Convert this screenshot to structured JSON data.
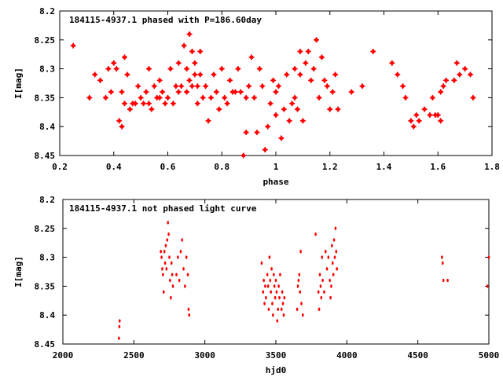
{
  "chart_data": [
    {
      "type": "scatter",
      "title": "184115-4937.1 phased with P=186.60day",
      "xlabel": "phase",
      "ylabel": "I[mag]",
      "xlim": [
        0.2,
        1.8
      ],
      "ylim": [
        8.2,
        8.45
      ],
      "y_inverted": true,
      "x_ticks": [
        "0.2",
        "0.4",
        "0.6",
        "0.8",
        "1",
        "1.2",
        "1.4",
        "1.6",
        "1.8"
      ],
      "y_ticks": [
        "8.2",
        "8.25",
        "8.3",
        "8.35",
        "8.4",
        "8.45"
      ],
      "marker_color": "#ff0000",
      "grid": false,
      "points": [
        [
          0.25,
          8.26
        ],
        [
          0.31,
          8.35
        ],
        [
          0.33,
          8.31
        ],
        [
          0.35,
          8.32
        ],
        [
          0.37,
          8.35
        ],
        [
          0.38,
          8.3
        ],
        [
          0.39,
          8.34
        ],
        [
          0.4,
          8.29
        ],
        [
          0.41,
          8.3
        ],
        [
          0.42,
          8.39
        ],
        [
          0.43,
          8.4
        ],
        [
          0.43,
          8.34
        ],
        [
          0.44,
          8.28
        ],
        [
          0.44,
          8.36
        ],
        [
          0.45,
          8.31
        ],
        [
          0.46,
          8.37
        ],
        [
          0.47,
          8.36
        ],
        [
          0.48,
          8.36
        ],
        [
          0.49,
          8.33
        ],
        [
          0.5,
          8.35
        ],
        [
          0.51,
          8.36
        ],
        [
          0.52,
          8.34
        ],
        [
          0.53,
          8.3
        ],
        [
          0.53,
          8.36
        ],
        [
          0.54,
          8.37
        ],
        [
          0.55,
          8.33
        ],
        [
          0.56,
          8.35
        ],
        [
          0.57,
          8.35
        ],
        [
          0.57,
          8.32
        ],
        [
          0.58,
          8.34
        ],
        [
          0.59,
          8.36
        ],
        [
          0.6,
          8.35
        ],
        [
          0.61,
          8.3
        ],
        [
          0.62,
          8.36
        ],
        [
          0.63,
          8.33
        ],
        [
          0.64,
          8.29
        ],
        [
          0.64,
          8.34
        ],
        [
          0.65,
          8.33
        ],
        [
          0.66,
          8.26
        ],
        [
          0.67,
          8.34
        ],
        [
          0.67,
          8.3
        ],
        [
          0.68,
          8.24
        ],
        [
          0.68,
          8.32
        ],
        [
          0.69,
          8.27
        ],
        [
          0.69,
          8.33
        ],
        [
          0.7,
          8.29
        ],
        [
          0.7,
          8.31
        ],
        [
          0.71,
          8.36
        ],
        [
          0.71,
          8.33
        ],
        [
          0.72,
          8.27
        ],
        [
          0.72,
          8.31
        ],
        [
          0.73,
          8.35
        ],
        [
          0.74,
          8.33
        ],
        [
          0.75,
          8.39
        ],
        [
          0.76,
          8.35
        ],
        [
          0.77,
          8.31
        ],
        [
          0.78,
          8.34
        ],
        [
          0.79,
          8.37
        ],
        [
          0.8,
          8.3
        ],
        [
          0.81,
          8.35
        ],
        [
          0.82,
          8.36
        ],
        [
          0.83,
          8.32
        ],
        [
          0.84,
          8.34
        ],
        [
          0.85,
          8.34
        ],
        [
          0.86,
          8.3
        ],
        [
          0.87,
          8.34
        ],
        [
          0.88,
          8.45
        ],
        [
          0.89,
          8.35
        ],
        [
          0.89,
          8.41
        ],
        [
          0.9,
          8.33
        ],
        [
          0.91,
          8.28
        ],
        [
          0.92,
          8.35
        ],
        [
          0.93,
          8.41
        ],
        [
          0.94,
          8.3
        ],
        [
          0.95,
          8.33
        ],
        [
          0.96,
          8.44
        ],
        [
          0.97,
          8.4
        ],
        [
          0.98,
          8.36
        ],
        [
          0.99,
          8.32
        ],
        [
          1.0,
          8.38
        ],
        [
          1.0,
          8.34
        ],
        [
          1.01,
          8.33
        ],
        [
          1.02,
          8.42
        ],
        [
          1.03,
          8.37
        ],
        [
          1.04,
          8.31
        ],
        [
          1.05,
          8.39
        ],
        [
          1.06,
          8.36
        ],
        [
          1.07,
          8.3
        ],
        [
          1.07,
          8.35
        ],
        [
          1.08,
          8.37
        ],
        [
          1.09,
          8.27
        ],
        [
          1.09,
          8.31
        ],
        [
          1.1,
          8.39
        ],
        [
          1.11,
          8.29
        ],
        [
          1.12,
          8.27
        ],
        [
          1.13,
          8.32
        ],
        [
          1.14,
          8.3
        ],
        [
          1.15,
          8.25
        ],
        [
          1.16,
          8.35
        ],
        [
          1.17,
          8.28
        ],
        [
          1.18,
          8.32
        ],
        [
          1.19,
          8.33
        ],
        [
          1.2,
          8.37
        ],
        [
          1.21,
          8.34
        ],
        [
          1.22,
          8.31
        ],
        [
          1.23,
          8.37
        ],
        [
          1.28,
          8.34
        ],
        [
          1.32,
          8.33
        ],
        [
          1.36,
          8.27
        ],
        [
          1.43,
          8.29
        ],
        [
          1.45,
          8.31
        ],
        [
          1.47,
          8.33
        ],
        [
          1.48,
          8.35
        ],
        [
          1.5,
          8.39
        ],
        [
          1.51,
          8.4
        ],
        [
          1.52,
          8.38
        ],
        [
          1.53,
          8.39
        ],
        [
          1.55,
          8.37
        ],
        [
          1.57,
          8.38
        ],
        [
          1.58,
          8.35
        ],
        [
          1.59,
          8.38
        ],
        [
          1.6,
          8.38
        ],
        [
          1.61,
          8.39
        ],
        [
          1.61,
          8.34
        ],
        [
          1.62,
          8.33
        ],
        [
          1.63,
          8.32
        ],
        [
          1.66,
          8.32
        ],
        [
          1.67,
          8.29
        ],
        [
          1.68,
          8.31
        ],
        [
          1.7,
          8.3
        ],
        [
          1.72,
          8.31
        ],
        [
          1.73,
          8.35
        ]
      ]
    },
    {
      "type": "scatter",
      "title": "184115-4937.1 not phased light curve",
      "xlabel": "hjd0",
      "ylabel": "I[mag]",
      "xlim": [
        2000,
        5000
      ],
      "ylim": [
        8.2,
        8.45
      ],
      "y_inverted": true,
      "x_ticks": [
        "2000",
        "2500",
        "3000",
        "3500",
        "4000",
        "4500",
        "5000"
      ],
      "y_ticks": [
        "8.2",
        "8.25",
        "8.3",
        "8.35",
        "8.4",
        "8.45"
      ],
      "marker_color": "#ff0000",
      "grid": false,
      "points": [
        [
          2395,
          8.44
        ],
        [
          2398,
          8.42
        ],
        [
          2400,
          8.41
        ],
        [
          2690,
          8.29
        ],
        [
          2695,
          8.3
        ],
        [
          2700,
          8.32
        ],
        [
          2705,
          8.33
        ],
        [
          2710,
          8.36
        ],
        [
          2715,
          8.29
        ],
        [
          2720,
          8.31
        ],
        [
          2725,
          8.28
        ],
        [
          2730,
          8.32
        ],
        [
          2735,
          8.27
        ],
        [
          2740,
          8.24
        ],
        [
          2745,
          8.26
        ],
        [
          2750,
          8.3
        ],
        [
          2755,
          8.34
        ],
        [
          2760,
          8.37
        ],
        [
          2765,
          8.31
        ],
        [
          2770,
          8.33
        ],
        [
          2775,
          8.35
        ],
        [
          2800,
          8.33
        ],
        [
          2810,
          8.3
        ],
        [
          2820,
          8.34
        ],
        [
          2830,
          8.29
        ],
        [
          2840,
          8.27
        ],
        [
          2850,
          8.32
        ],
        [
          2860,
          8.35
        ],
        [
          2870,
          8.3
        ],
        [
          2880,
          8.33
        ],
        [
          2885,
          8.39
        ],
        [
          2890,
          8.4
        ],
        [
          3400,
          8.31
        ],
        [
          3410,
          8.36
        ],
        [
          3415,
          8.34
        ],
        [
          3420,
          8.38
        ],
        [
          3425,
          8.35
        ],
        [
          3430,
          8.37
        ],
        [
          3440,
          8.33
        ],
        [
          3445,
          8.35
        ],
        [
          3450,
          8.39
        ],
        [
          3455,
          8.3
        ],
        [
          3460,
          8.34
        ],
        [
          3465,
          8.36
        ],
        [
          3470,
          8.32
        ],
        [
          3475,
          8.38
        ],
        [
          3480,
          8.4
        ],
        [
          3485,
          8.33
        ],
        [
          3490,
          8.35
        ],
        [
          3495,
          8.37
        ],
        [
          3500,
          8.34
        ],
        [
          3505,
          8.36
        ],
        [
          3510,
          8.41
        ],
        [
          3515,
          8.39
        ],
        [
          3520,
          8.35
        ],
        [
          3525,
          8.37
        ],
        [
          3530,
          8.33
        ],
        [
          3540,
          8.39
        ],
        [
          3545,
          8.36
        ],
        [
          3550,
          8.38
        ],
        [
          3555,
          8.4
        ],
        [
          3560,
          8.37
        ],
        [
          3650,
          8.39
        ],
        [
          3655,
          8.35
        ],
        [
          3660,
          8.34
        ],
        [
          3665,
          8.33
        ],
        [
          3670,
          8.36
        ],
        [
          3675,
          8.29
        ],
        [
          3680,
          8.38
        ],
        [
          3690,
          8.4
        ],
        [
          3780,
          8.26
        ],
        [
          3800,
          8.36
        ],
        [
          3805,
          8.39
        ],
        [
          3810,
          8.33
        ],
        [
          3815,
          8.35
        ],
        [
          3820,
          8.37
        ],
        [
          3825,
          8.3
        ],
        [
          3830,
          8.34
        ],
        [
          3840,
          8.36
        ],
        [
          3850,
          8.29
        ],
        [
          3860,
          8.32
        ],
        [
          3870,
          8.3
        ],
        [
          3880,
          8.34
        ],
        [
          3885,
          8.37
        ],
        [
          3890,
          8.35
        ],
        [
          3895,
          8.28
        ],
        [
          3900,
          8.31
        ],
        [
          3905,
          8.33
        ],
        [
          3910,
          8.27
        ],
        [
          3915,
          8.3
        ],
        [
          3920,
          8.25
        ],
        [
          3925,
          8.29
        ],
        [
          3930,
          8.32
        ],
        [
          4670,
          8.3
        ],
        [
          4675,
          8.31
        ],
        [
          4680,
          8.34
        ],
        [
          4710,
          8.34
        ],
        [
          4990,
          8.35
        ],
        [
          5000,
          8.3
        ]
      ]
    }
  ]
}
